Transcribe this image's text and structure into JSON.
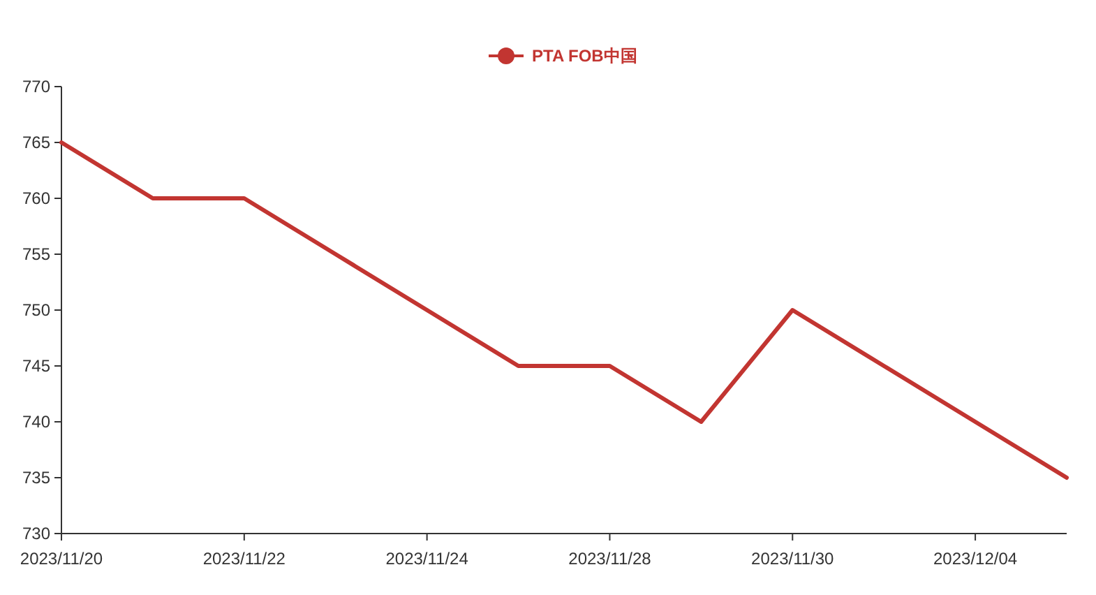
{
  "chart_data": {
    "type": "line",
    "categories": [
      "2023/11/20",
      null,
      "2023/11/22",
      null,
      "2023/11/24",
      null,
      "2023/11/28",
      null,
      "2023/11/30",
      null,
      "2023/12/04",
      null
    ],
    "series": [
      {
        "name": "PTA FOB中国",
        "color": "#c23531",
        "values": [
          765,
          760,
          760,
          755,
          750,
          745,
          745,
          740,
          750,
          745,
          740,
          735
        ]
      }
    ],
    "ylim": [
      730,
      770
    ],
    "yticks": [
      730,
      735,
      740,
      745,
      750,
      755,
      760,
      765,
      770
    ],
    "legend": "top",
    "grid": false
  }
}
